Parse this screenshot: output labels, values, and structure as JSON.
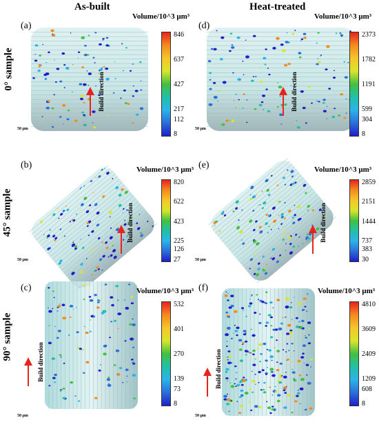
{
  "columns": [
    "As-built",
    "Heat-treated"
  ],
  "rows": [
    "0° sample",
    "45° sample",
    "90° sample"
  ],
  "volume_label": "Volume/10^3 μm³",
  "build_direction": "Build direction",
  "scale": "50 μm",
  "colors": {
    "bar_top": "#e8231f",
    "bar_bottom": "#1f1fc8",
    "arrow": "#e8231f",
    "cylinder": "#bfe4e6"
  },
  "panels": [
    {
      "letter": "(a)",
      "ticks": [
        "846",
        "637",
        "427",
        "217",
        "112",
        "8"
      ]
    },
    {
      "letter": "(b)",
      "ticks": [
        "820",
        "622",
        "423",
        "225",
        "126",
        "27"
      ]
    },
    {
      "letter": "(c)",
      "ticks": [
        "532",
        "401",
        "270",
        "139",
        "73",
        "8"
      ]
    },
    {
      "letter": "(d)",
      "ticks": [
        "2373",
        "1782",
        "1191",
        "599",
        "304",
        "8"
      ]
    },
    {
      "letter": "(e)",
      "ticks": [
        "2859",
        "2151",
        "1444",
        "737",
        "383",
        "30"
      ]
    },
    {
      "letter": "(f)",
      "ticks": [
        "4810",
        "3609",
        "2409",
        "1209",
        "608",
        "8"
      ]
    }
  ]
}
